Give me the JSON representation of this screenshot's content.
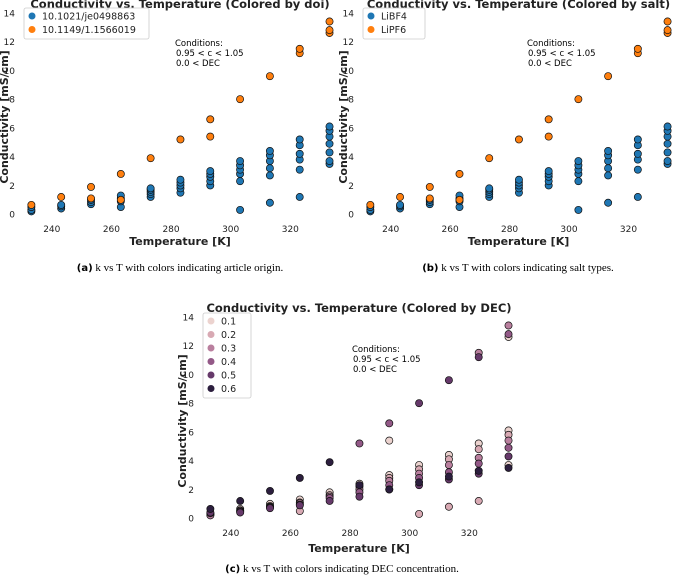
{
  "chart_data": [
    {
      "type": "scatter",
      "title": "Conductivity vs. Temperature (Colored by doi)",
      "xlabel": "Temperature [K]",
      "ylabel": "Conductivity [mS/cm]",
      "xlim": [
        229,
        337
      ],
      "ylim": [
        -0.4,
        14.2
      ],
      "xticks": [
        "240",
        "260",
        "280",
        "300",
        "320"
      ],
      "yticks": [
        "0",
        "2",
        "4",
        "6",
        "8",
        "10",
        "12",
        "14"
      ],
      "conditions": [
        "Conditions:",
        "0.95 < c < 1.05",
        "0.0 < DEC"
      ],
      "caption_label": "(a)",
      "caption_text": "k vs T with colors indicating article origin.",
      "series": [
        {
          "name": "10.1021/je0498863",
          "color": "#1f77b4",
          "points": [
            [
              233.15,
              0.2
            ],
            [
              233.15,
              0.3
            ],
            [
              233.15,
              0.5
            ],
            [
              243.15,
              0.4
            ],
            [
              243.15,
              0.55
            ],
            [
              243.15,
              0.65
            ],
            [
              253.15,
              0.7
            ],
            [
              253.15,
              0.85
            ],
            [
              253.15,
              1.0
            ],
            [
              263.15,
              0.5
            ],
            [
              263.15,
              0.9
            ],
            [
              263.15,
              1.1
            ],
            [
              263.15,
              1.3
            ],
            [
              273.15,
              1.2
            ],
            [
              273.15,
              1.4
            ],
            [
              273.15,
              1.55
            ],
            [
              273.15,
              1.7
            ],
            [
              273.15,
              1.8
            ],
            [
              283.15,
              1.5
            ],
            [
              283.15,
              1.8
            ],
            [
              283.15,
              2.0
            ],
            [
              283.15,
              2.2
            ],
            [
              283.15,
              2.4
            ],
            [
              293.15,
              2.0
            ],
            [
              293.15,
              2.3
            ],
            [
              293.15,
              2.6
            ],
            [
              293.15,
              2.8
            ],
            [
              293.15,
              3.0
            ],
            [
              303.15,
              0.3
            ],
            [
              303.15,
              2.3
            ],
            [
              303.15,
              2.8
            ],
            [
              303.15,
              3.1
            ],
            [
              303.15,
              3.4
            ],
            [
              303.15,
              3.7
            ],
            [
              313.15,
              0.8
            ],
            [
              313.15,
              2.7
            ],
            [
              313.15,
              3.2
            ],
            [
              313.15,
              3.7
            ],
            [
              313.15,
              4.1
            ],
            [
              313.15,
              4.4
            ],
            [
              323.15,
              1.2
            ],
            [
              323.15,
              3.1
            ],
            [
              323.15,
              3.8
            ],
            [
              323.15,
              4.2
            ],
            [
              323.15,
              4.8
            ],
            [
              323.15,
              5.2
            ],
            [
              333.15,
              3.5
            ],
            [
              333.15,
              3.7
            ],
            [
              333.15,
              4.3
            ],
            [
              333.15,
              4.9
            ],
            [
              333.15,
              5.4
            ],
            [
              333.15,
              5.8
            ],
            [
              333.15,
              6.1
            ]
          ]
        },
        {
          "name": "10.1149/1.1566019",
          "color": "#ff7f0e",
          "points": [
            [
              233.15,
              0.65
            ],
            [
              243.15,
              1.2
            ],
            [
              253.15,
              1.1
            ],
            [
              253.15,
              1.9
            ],
            [
              263.15,
              1.0
            ],
            [
              263.15,
              2.8
            ],
            [
              273.15,
              3.9
            ],
            [
              283.15,
              5.2
            ],
            [
              293.15,
              5.4
            ],
            [
              293.15,
              6.6
            ],
            [
              303.15,
              8.0
            ],
            [
              313.15,
              9.6
            ],
            [
              323.15,
              11.2
            ],
            [
              323.15,
              11.5
            ],
            [
              333.15,
              12.6
            ],
            [
              333.15,
              12.8
            ],
            [
              333.15,
              13.4
            ]
          ]
        }
      ]
    },
    {
      "type": "scatter",
      "title": "Conductivity vs. Temperature (Colored by salt)",
      "xlabel": "Temperature [K]",
      "ylabel": "Conductivity [mS/cm]",
      "xlim": [
        229,
        337
      ],
      "ylim": [
        -0.4,
        14.2
      ],
      "xticks": [
        "240",
        "260",
        "280",
        "300",
        "320"
      ],
      "yticks": [
        "0",
        "2",
        "4",
        "6",
        "8",
        "10",
        "12",
        "14"
      ],
      "conditions": [
        "Conditions:",
        "0.95 < c < 1.05",
        "0.0 < DEC"
      ],
      "caption_label": "(b)",
      "caption_text": "k vs T with colors indicating salt types.",
      "series": [
        {
          "name": "LiBF4",
          "color": "#1f77b4",
          "points": [
            [
              233.15,
              0.2
            ],
            [
              233.15,
              0.3
            ],
            [
              233.15,
              0.5
            ],
            [
              243.15,
              0.4
            ],
            [
              243.15,
              0.55
            ],
            [
              243.15,
              0.65
            ],
            [
              253.15,
              0.7
            ],
            [
              253.15,
              0.85
            ],
            [
              253.15,
              1.0
            ],
            [
              263.15,
              0.5
            ],
            [
              263.15,
              0.9
            ],
            [
              263.15,
              1.1
            ],
            [
              263.15,
              1.3
            ],
            [
              273.15,
              1.2
            ],
            [
              273.15,
              1.4
            ],
            [
              273.15,
              1.55
            ],
            [
              273.15,
              1.7
            ],
            [
              273.15,
              1.8
            ],
            [
              283.15,
              1.5
            ],
            [
              283.15,
              1.8
            ],
            [
              283.15,
              2.0
            ],
            [
              283.15,
              2.2
            ],
            [
              283.15,
              2.4
            ],
            [
              293.15,
              2.0
            ],
            [
              293.15,
              2.3
            ],
            [
              293.15,
              2.6
            ],
            [
              293.15,
              2.8
            ],
            [
              293.15,
              3.0
            ],
            [
              303.15,
              0.3
            ],
            [
              303.15,
              2.3
            ],
            [
              303.15,
              2.8
            ],
            [
              303.15,
              3.1
            ],
            [
              303.15,
              3.4
            ],
            [
              303.15,
              3.7
            ],
            [
              313.15,
              0.8
            ],
            [
              313.15,
              2.7
            ],
            [
              313.15,
              3.2
            ],
            [
              313.15,
              3.7
            ],
            [
              313.15,
              4.1
            ],
            [
              313.15,
              4.4
            ],
            [
              323.15,
              1.2
            ],
            [
              323.15,
              3.1
            ],
            [
              323.15,
              3.8
            ],
            [
              323.15,
              4.2
            ],
            [
              323.15,
              4.8
            ],
            [
              323.15,
              5.2
            ],
            [
              333.15,
              3.5
            ],
            [
              333.15,
              3.7
            ],
            [
              333.15,
              4.3
            ],
            [
              333.15,
              4.9
            ],
            [
              333.15,
              5.4
            ],
            [
              333.15,
              5.8
            ],
            [
              333.15,
              6.1
            ]
          ]
        },
        {
          "name": "LiPF6",
          "color": "#ff7f0e",
          "points": [
            [
              233.15,
              0.65
            ],
            [
              243.15,
              1.2
            ],
            [
              253.15,
              1.1
            ],
            [
              253.15,
              1.9
            ],
            [
              263.15,
              1.0
            ],
            [
              263.15,
              2.8
            ],
            [
              273.15,
              3.9
            ],
            [
              283.15,
              5.2
            ],
            [
              293.15,
              5.4
            ],
            [
              293.15,
              6.6
            ],
            [
              303.15,
              8.0
            ],
            [
              313.15,
              9.6
            ],
            [
              323.15,
              11.2
            ],
            [
              323.15,
              11.5
            ],
            [
              333.15,
              12.6
            ],
            [
              333.15,
              12.8
            ],
            [
              333.15,
              13.4
            ]
          ]
        }
      ]
    },
    {
      "type": "scatter",
      "title": "Conductivity vs. Temperature (Colored by DEC)",
      "xlabel": "Temperature [K]",
      "ylabel": "Conductivity [mS/cm]",
      "xlim": [
        229,
        337
      ],
      "ylim": [
        -0.4,
        14.2
      ],
      "xticks": [
        "240",
        "260",
        "280",
        "300",
        "320"
      ],
      "yticks": [
        "0",
        "2",
        "4",
        "6",
        "8",
        "10",
        "12",
        "14"
      ],
      "conditions": [
        "Conditions:",
        "0.95 < c < 1.05",
        "0.0 < DEC"
      ],
      "caption_label": "(c)",
      "caption_text": "k vs T with colors indicating DEC concentration.",
      "series": [
        {
          "name": "0.1",
          "color": "#ecd3cf",
          "points": [
            [
              233.15,
              0.3
            ],
            [
              243.15,
              0.65
            ],
            [
              253.15,
              1.0
            ],
            [
              263.15,
              1.3
            ],
            [
              273.15,
              1.8
            ],
            [
              283.15,
              2.4
            ],
            [
              293.15,
              3.0
            ],
            [
              293.15,
              5.4
            ],
            [
              303.15,
              3.7
            ],
            [
              313.15,
              4.4
            ],
            [
              323.15,
              5.2
            ],
            [
              333.15,
              3.7
            ],
            [
              333.15,
              6.1
            ],
            [
              333.15,
              12.6
            ]
          ]
        },
        {
          "name": "0.2",
          "color": "#d8a9b3",
          "points": [
            [
              233.15,
              0.25
            ],
            [
              243.15,
              0.55
            ],
            [
              253.15,
              0.85
            ],
            [
              263.15,
              0.5
            ],
            [
              263.15,
              1.1
            ],
            [
              273.15,
              1.6
            ],
            [
              283.15,
              2.2
            ],
            [
              293.15,
              2.8
            ],
            [
              303.15,
              0.3
            ],
            [
              303.15,
              3.4
            ],
            [
              313.15,
              0.8
            ],
            [
              313.15,
              4.1
            ],
            [
              323.15,
              1.2
            ],
            [
              323.15,
              4.8
            ],
            [
              333.15,
              5.8
            ]
          ]
        },
        {
          "name": "0.3",
          "color": "#b97f9e",
          "points": [
            [
              233.15,
              0.2
            ],
            [
              243.15,
              0.5
            ],
            [
              253.15,
              0.8
            ],
            [
              263.15,
              1.05
            ],
            [
              273.15,
              1.5
            ],
            [
              283.15,
              2.0
            ],
            [
              293.15,
              2.6
            ],
            [
              303.15,
              3.1
            ],
            [
              313.15,
              3.7
            ],
            [
              323.15,
              4.2
            ],
            [
              323.15,
              11.5
            ],
            [
              333.15,
              5.4
            ],
            [
              333.15,
              13.4
            ]
          ]
        },
        {
          "name": "0.4",
          "color": "#935987",
          "points": [
            [
              233.15,
              0.35
            ],
            [
              243.15,
              0.45
            ],
            [
              253.15,
              0.75
            ],
            [
              263.15,
              0.95
            ],
            [
              273.15,
              1.4
            ],
            [
              283.15,
              1.8
            ],
            [
              283.15,
              5.2
            ],
            [
              293.15,
              2.3
            ],
            [
              293.15,
              6.6
            ],
            [
              303.15,
              2.8
            ],
            [
              313.15,
              3.2
            ],
            [
              323.15,
              3.8
            ],
            [
              333.15,
              4.9
            ],
            [
              333.15,
              12.8
            ]
          ]
        },
        {
          "name": "0.5",
          "color": "#66396a",
          "points": [
            [
              233.15,
              0.4
            ],
            [
              243.15,
              0.4
            ],
            [
              253.15,
              0.7
            ],
            [
              263.15,
              0.9
            ],
            [
              273.15,
              1.2
            ],
            [
              283.15,
              1.5
            ],
            [
              293.15,
              2.0
            ],
            [
              303.15,
              2.3
            ],
            [
              303.15,
              8.0
            ],
            [
              313.15,
              2.7
            ],
            [
              313.15,
              9.6
            ],
            [
              323.15,
              3.1
            ],
            [
              323.15,
              11.2
            ],
            [
              333.15,
              4.3
            ]
          ]
        },
        {
          "name": "0.6",
          "color": "#2c1e3e",
          "points": [
            [
              233.15,
              0.65
            ],
            [
              243.15,
              1.2
            ],
            [
              253.15,
              1.9
            ],
            [
              263.15,
              2.8
            ],
            [
              273.15,
              3.9
            ],
            [
              283.15,
              2.3
            ],
            [
              293.15,
              2.0
            ],
            [
              303.15,
              2.5
            ],
            [
              313.15,
              2.9
            ],
            [
              323.15,
              3.3
            ],
            [
              333.15,
              3.5
            ]
          ]
        }
      ]
    }
  ]
}
